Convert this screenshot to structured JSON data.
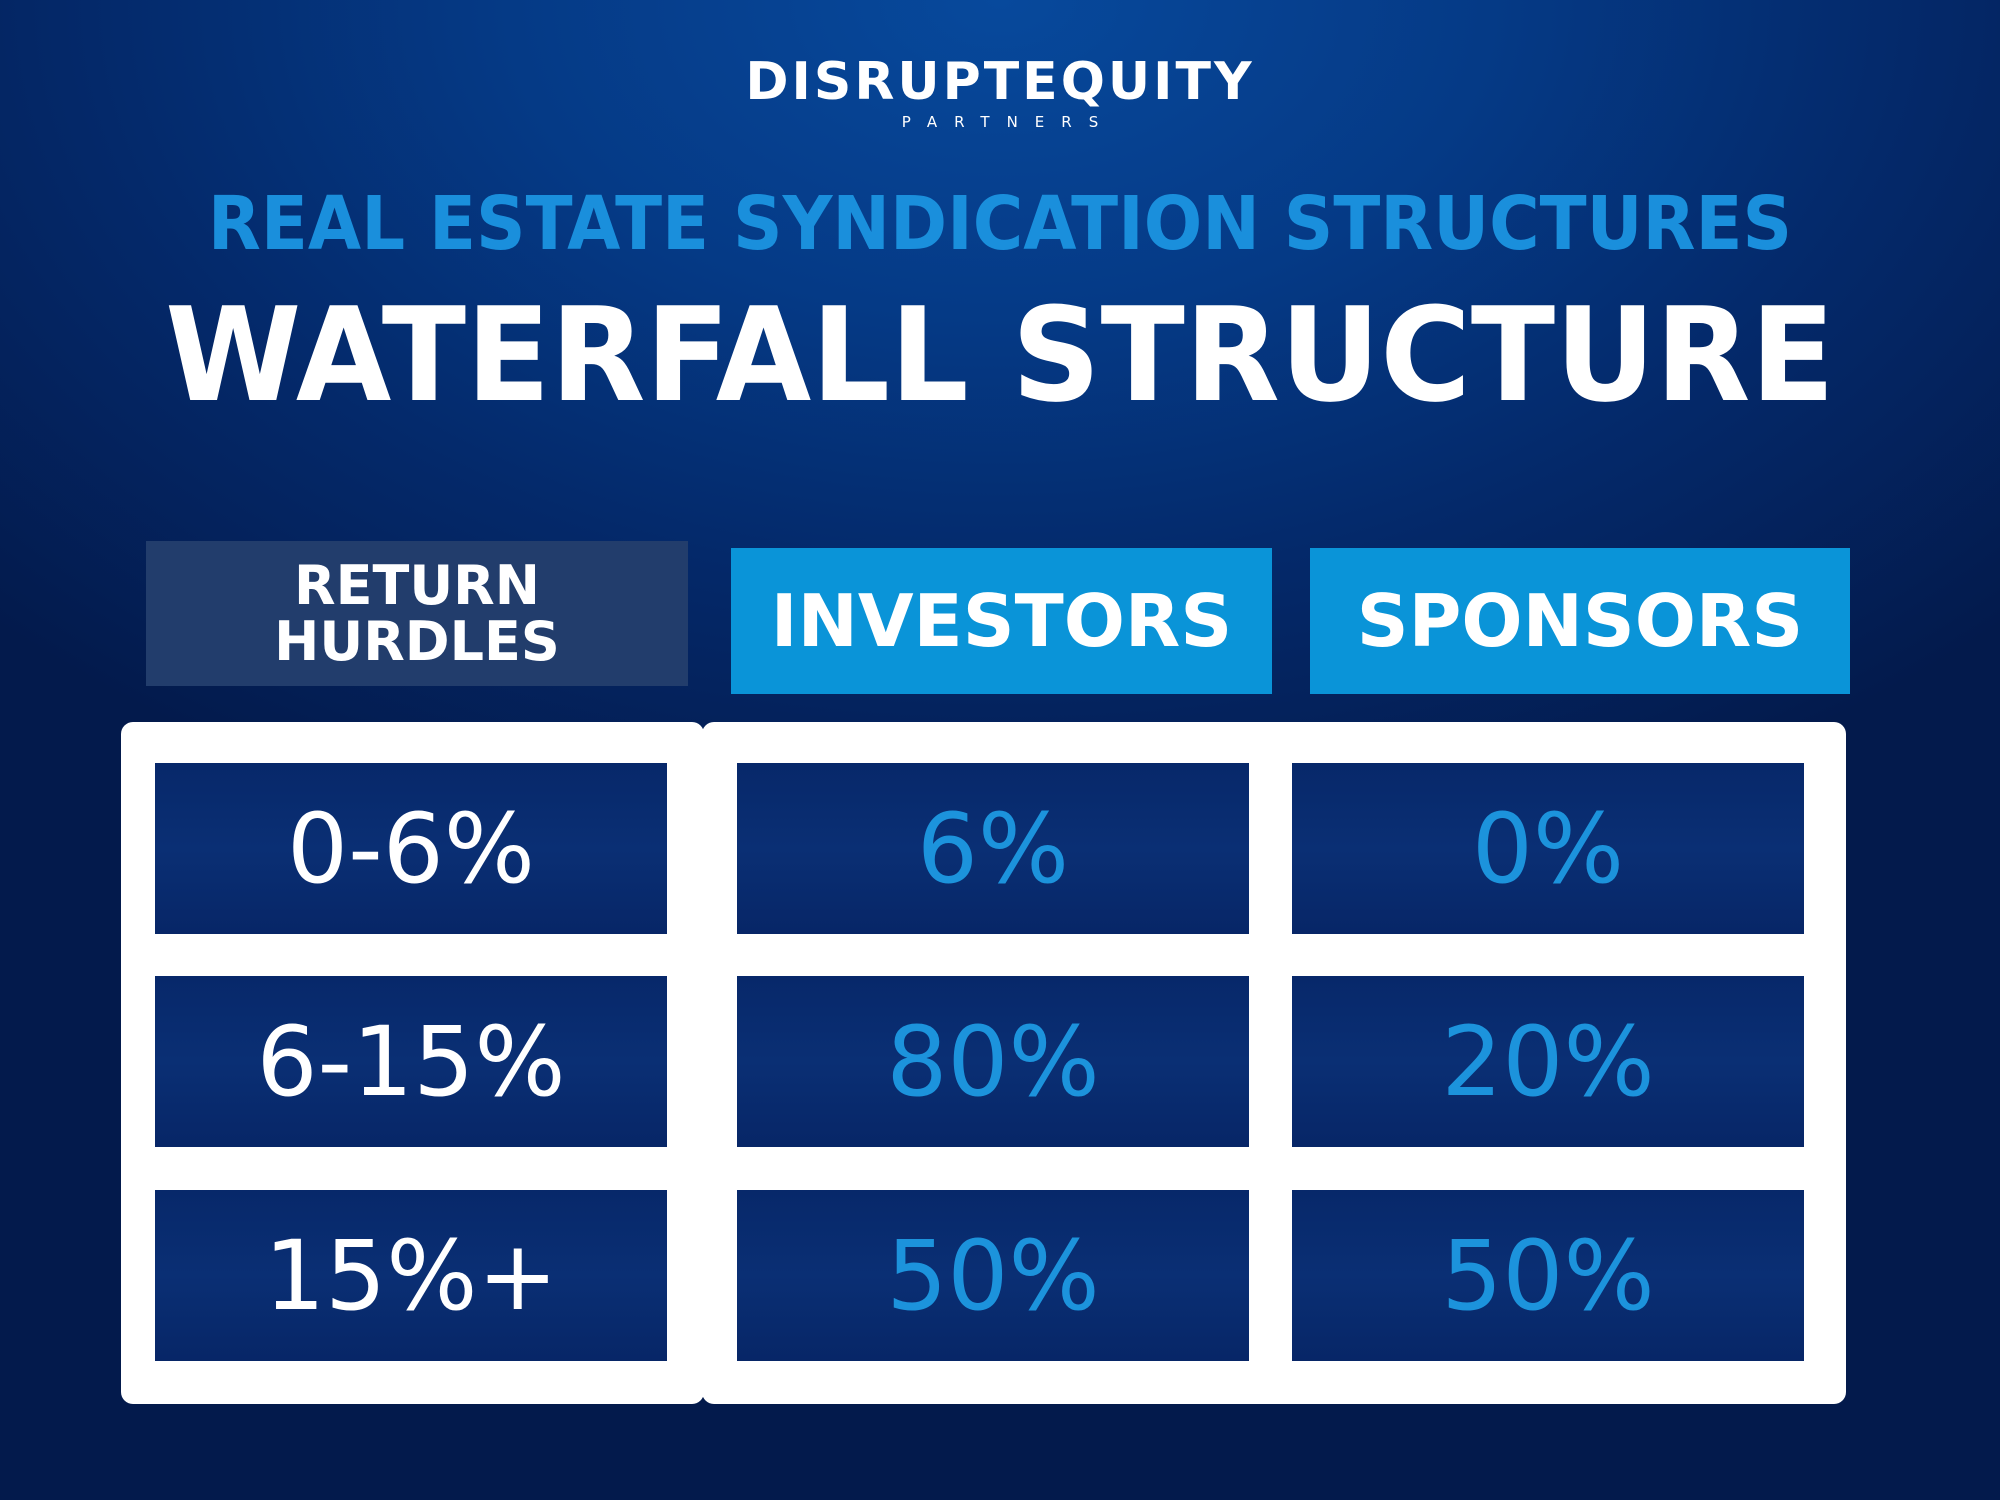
{
  "logo": {
    "name": "DISRUPTEQUITY",
    "tagline": "PARTNERS"
  },
  "super_title": "REAL ESTATE SYNDICATION STRUCTURES",
  "title": "WATERFALL STRUCTURE",
  "table": {
    "headers": {
      "hurdles": "RETURN HURDLES",
      "investors": "INVESTORS",
      "sponsors": "SPONSORS"
    },
    "rows": [
      {
        "hurdle": "0-6%",
        "investors": "6%",
        "sponsors": "0%"
      },
      {
        "hurdle": "6-15%",
        "investors": "80%",
        "sponsors": "20%"
      },
      {
        "hurdle": "15%+",
        "investors": "50%",
        "sponsors": "50%"
      }
    ]
  },
  "colors": {
    "background": "#04296a",
    "accent": "#0a94d8",
    "hurdles_header": "#223d6c",
    "cell": "#072a6c",
    "frame": "#ffffff"
  }
}
